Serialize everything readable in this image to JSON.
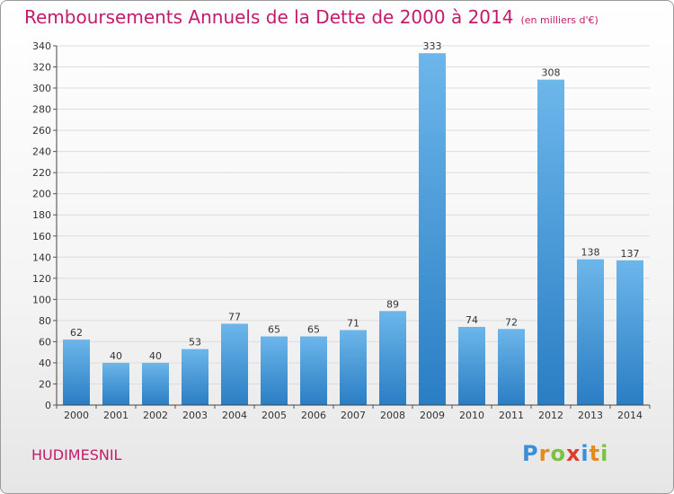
{
  "title": "Remboursements Annuels de la Dette de 2000 à 2014",
  "unit": "(en milliers d'€)",
  "commune": "HUDIMESNIL",
  "logo": {
    "letters": [
      "P",
      "r",
      "o",
      "x",
      "i",
      "t",
      "i"
    ],
    "colors": [
      "#3a8fd8",
      "#e88a1a",
      "#7cc242",
      "#e23b2e",
      "#3a8fd8",
      "#e88a1a",
      "#7cc242"
    ]
  },
  "colors": {
    "accent": "#c41a6d",
    "bar_light": "#6cb6ea",
    "bar_dark": "#2a7ec4"
  },
  "chart_data": {
    "type": "bar",
    "title": "Remboursements Annuels de la Dette de 2000 à 2014",
    "ylabel": "en milliers d'€",
    "xlabel": "",
    "categories": [
      "2000",
      "2001",
      "2002",
      "2003",
      "2004",
      "2005",
      "2006",
      "2007",
      "2008",
      "2009",
      "2010",
      "2011",
      "2012",
      "2013",
      "2014"
    ],
    "values": [
      62,
      40,
      40,
      53,
      77,
      65,
      65,
      71,
      89,
      333,
      74,
      72,
      308,
      138,
      137
    ],
    "ylim": [
      0,
      340
    ],
    "yticks": [
      0,
      20,
      40,
      60,
      80,
      100,
      120,
      140,
      160,
      180,
      200,
      220,
      240,
      260,
      280,
      300,
      320,
      340
    ],
    "grid": true
  }
}
